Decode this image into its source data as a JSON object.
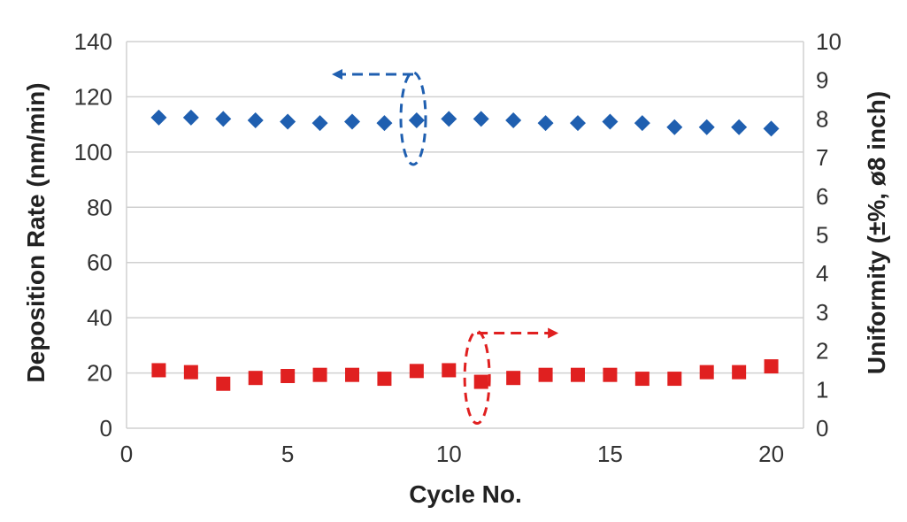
{
  "chart_data": {
    "type": "scatter",
    "xlabel": "Cycle No.",
    "ylabel_left": "Deposition Rate (nm/min)",
    "ylabel_right": "Uniformity (±%, ø8 inch)",
    "x_ticks": [
      "0",
      "5",
      "10",
      "15",
      "20"
    ],
    "y_left_ticks": [
      "0",
      "20",
      "40",
      "60",
      "80",
      "100",
      "120",
      "140"
    ],
    "y_right_ticks": [
      "0",
      "1",
      "2",
      "3",
      "4",
      "5",
      "6",
      "7",
      "8",
      "9",
      "10"
    ],
    "xlim": [
      0,
      21
    ],
    "ylim_left": [
      0,
      140
    ],
    "ylim_right": [
      0,
      10
    ],
    "grid": true,
    "x": [
      1,
      2,
      3,
      4,
      5,
      6,
      7,
      8,
      9,
      10,
      11,
      12,
      13,
      14,
      15,
      16,
      17,
      18,
      19,
      20
    ],
    "series": [
      {
        "axis": "left",
        "marker": "diamond",
        "color": "#1f5fb0",
        "values": [
          112.5,
          112.5,
          112,
          111.5,
          111,
          110.5,
          111,
          110.5,
          111.5,
          112,
          112,
          111.5,
          110.5,
          110.5,
          111,
          110.5,
          109,
          109,
          109,
          108.5
        ]
      },
      {
        "axis": "right",
        "marker": "square",
        "color": "#e02020",
        "values": [
          1.5,
          1.45,
          1.15,
          1.3,
          1.35,
          1.38,
          1.38,
          1.28,
          1.48,
          1.5,
          1.2,
          1.3,
          1.38,
          1.38,
          1.38,
          1.28,
          1.28,
          1.45,
          1.45,
          1.6
        ]
      }
    ],
    "annotations": [
      {
        "type": "series-axis-indicator",
        "series": 0,
        "direction": "left",
        "color": "#1f5fb0"
      },
      {
        "type": "series-axis-indicator",
        "series": 1,
        "direction": "right",
        "color": "#e02020"
      }
    ]
  }
}
